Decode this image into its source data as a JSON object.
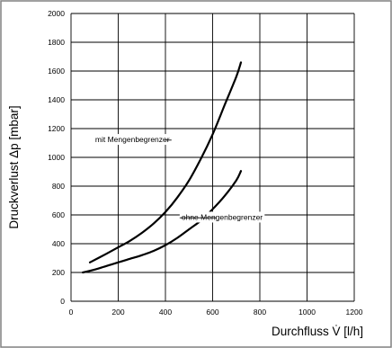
{
  "chart_data": {
    "type": "line",
    "title": "",
    "xlabel": "Durchfluss V̇ [l/h]",
    "ylabel": "Druckverlust Δp [mbar]",
    "xlim": [
      0,
      1200
    ],
    "ylim": [
      0,
      2000
    ],
    "x_ticks": [
      0,
      200,
      400,
      600,
      800,
      1000,
      1200
    ],
    "y_ticks": [
      0,
      200,
      400,
      600,
      800,
      1000,
      1200,
      1400,
      1600,
      1800,
      2000
    ],
    "grid": true,
    "series": [
      {
        "name": "mit Mengenbegrenzer",
        "x": [
          80,
          150,
          200,
          250,
          300,
          350,
          400,
          450,
          500,
          550,
          600,
          650,
          700,
          720
        ],
        "y": [
          270,
          330,
          375,
          420,
          475,
          540,
          620,
          720,
          840,
          990,
          1160,
          1360,
          1560,
          1660
        ]
      },
      {
        "name": "ohne Mengenbegrenzer",
        "x": [
          50,
          100,
          150,
          200,
          250,
          300,
          350,
          400,
          450,
          500,
          550,
          600,
          650,
          700,
          720
        ],
        "y": [
          200,
          220,
          245,
          270,
          295,
          320,
          350,
          390,
          440,
          500,
          560,
          640,
          730,
          840,
          905
        ]
      }
    ],
    "annotations": [
      {
        "text": "mit Mengenbegrenzer",
        "x": 260,
        "y": 1120,
        "pointer_x": 395,
        "pointer_y": 1120
      },
      {
        "text": "ohne Mengenbegrenzer",
        "x": 640,
        "y": 580,
        "pointer_x": 615,
        "pointer_y": 580
      }
    ]
  }
}
